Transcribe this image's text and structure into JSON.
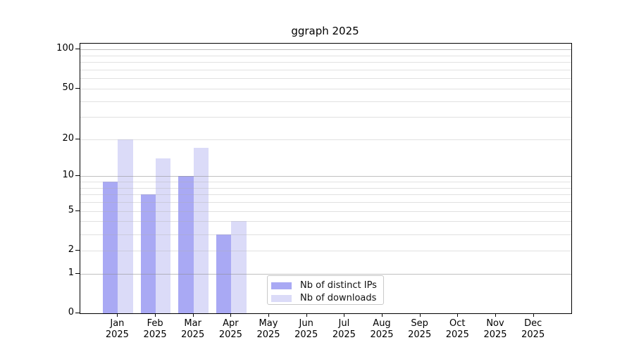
{
  "chart_data": {
    "type": "bar",
    "title": "ggraph 2025",
    "x_axis": {
      "categories": [
        "Jan",
        "Feb",
        "Mar",
        "Apr",
        "May",
        "Jun",
        "Jul",
        "Aug",
        "Sep",
        "Oct",
        "Nov",
        "Dec"
      ],
      "year_label": "2025"
    },
    "y_axis": {
      "scale": "log10(1+value)",
      "tick_values": [
        0,
        1,
        2,
        5,
        10,
        20,
        50,
        100
      ],
      "tick_labels": [
        "0",
        "1",
        "2",
        "5",
        "10",
        "20",
        "50",
        "100"
      ],
      "major_gridline_values": [
        1,
        10,
        100
      ],
      "minor_gridline_values": [
        3,
        4,
        6,
        7,
        8,
        9,
        30,
        40,
        60,
        70,
        80,
        90
      ],
      "ylim": [
        0,
        111
      ],
      "grid": "on"
    },
    "series": [
      {
        "name": "Nb of distinct IPs",
        "color": "#a9a9f4",
        "values": [
          9,
          7,
          10,
          3,
          null,
          null,
          null,
          null,
          null,
          null,
          null,
          null
        ]
      },
      {
        "name": "Nb of downloads",
        "color": "#dbdbf8",
        "values": [
          20,
          14,
          17,
          4,
          null,
          null,
          null,
          null,
          null,
          null,
          null,
          null
        ]
      }
    ],
    "legend": {
      "position": "bottom-center",
      "entries": [
        "Nb of distinct IPs",
        "Nb of downloads"
      ]
    },
    "colors": {
      "background": "#ffffff",
      "axis": "#000000",
      "major_grid": "#c8c8c8",
      "minor_grid": "#eaeaea",
      "text": "#111111"
    }
  }
}
